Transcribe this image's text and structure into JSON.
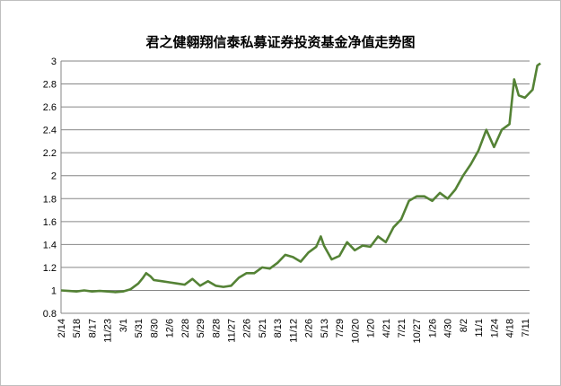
{
  "chart_data": {
    "type": "line",
    "title": "君之健翱翔信泰私募证券投资基金净值走势图",
    "xlabel": "",
    "ylabel": "",
    "ylim": [
      0.8,
      3.0
    ],
    "yticks": [
      "0.8",
      "1",
      "1.2",
      "1.4",
      "1.6",
      "1.8",
      "2",
      "2.2",
      "2.4",
      "2.6",
      "2.8",
      "3"
    ],
    "xticks": [
      "2/14",
      "5/18",
      "8/17",
      "11/23",
      "3/1",
      "5/31",
      "8/30",
      "12/6",
      "2/28",
      "5/29",
      "8/28",
      "11/27",
      "2/26",
      "5/21",
      "8/13",
      "11/12",
      "2/26",
      "5/13",
      "7/29",
      "10/20",
      "1/20",
      "4/21",
      "7/21",
      "10/27",
      "1/26",
      "4/30",
      "8/2",
      "11/1",
      "1/24",
      "4/18",
      "7/11"
    ],
    "grid": true,
    "legend": "none",
    "line_color": "#548235",
    "series": [
      {
        "name": "",
        "values": [
          [
            0.0,
            1.0
          ],
          [
            0.5,
            0.995
          ],
          [
            1.0,
            0.99
          ],
          [
            1.5,
            1.0
          ],
          [
            2.0,
            0.99
          ],
          [
            2.5,
            0.995
          ],
          [
            3.0,
            0.99
          ],
          [
            3.5,
            0.985
          ],
          [
            4.0,
            0.99
          ],
          [
            4.5,
            1.01
          ],
          [
            5.0,
            1.06
          ],
          [
            5.3,
            1.11
          ],
          [
            5.5,
            1.15
          ],
          [
            5.8,
            1.12
          ],
          [
            6.0,
            1.09
          ],
          [
            6.5,
            1.08
          ],
          [
            7.0,
            1.07
          ],
          [
            7.5,
            1.06
          ],
          [
            8.0,
            1.05
          ],
          [
            8.5,
            1.1
          ],
          [
            9.0,
            1.04
          ],
          [
            9.5,
            1.08
          ],
          [
            10.0,
            1.04
          ],
          [
            10.5,
            1.03
          ],
          [
            11.0,
            1.04
          ],
          [
            11.5,
            1.11
          ],
          [
            12.0,
            1.15
          ],
          [
            12.5,
            1.15
          ],
          [
            13.0,
            1.2
          ],
          [
            13.5,
            1.19
          ],
          [
            14.0,
            1.24
          ],
          [
            14.5,
            1.31
          ],
          [
            15.0,
            1.29
          ],
          [
            15.5,
            1.25
          ],
          [
            16.0,
            1.33
          ],
          [
            16.5,
            1.38
          ],
          [
            16.8,
            1.47
          ],
          [
            17.0,
            1.39
          ],
          [
            17.5,
            1.27
          ],
          [
            18.0,
            1.3
          ],
          [
            18.5,
            1.42
          ],
          [
            19.0,
            1.35
          ],
          [
            19.5,
            1.39
          ],
          [
            20.0,
            1.38
          ],
          [
            20.5,
            1.47
          ],
          [
            21.0,
            1.42
          ],
          [
            21.5,
            1.55
          ],
          [
            22.0,
            1.62
          ],
          [
            22.5,
            1.78
          ],
          [
            23.0,
            1.82
          ],
          [
            23.5,
            1.82
          ],
          [
            24.0,
            1.78
          ],
          [
            24.5,
            1.85
          ],
          [
            25.0,
            1.8
          ],
          [
            25.5,
            1.88
          ],
          [
            26.0,
            2.0
          ],
          [
            26.5,
            2.1
          ],
          [
            27.0,
            2.22
          ],
          [
            27.5,
            2.4
          ],
          [
            28.0,
            2.25
          ],
          [
            28.5,
            2.4
          ],
          [
            29.0,
            2.45
          ],
          [
            29.3,
            2.84
          ],
          [
            29.6,
            2.7
          ],
          [
            30.0,
            2.68
          ],
          [
            30.5,
            2.75
          ],
          [
            30.8,
            2.96
          ],
          [
            31.0,
            2.98
          ]
        ]
      }
    ]
  }
}
